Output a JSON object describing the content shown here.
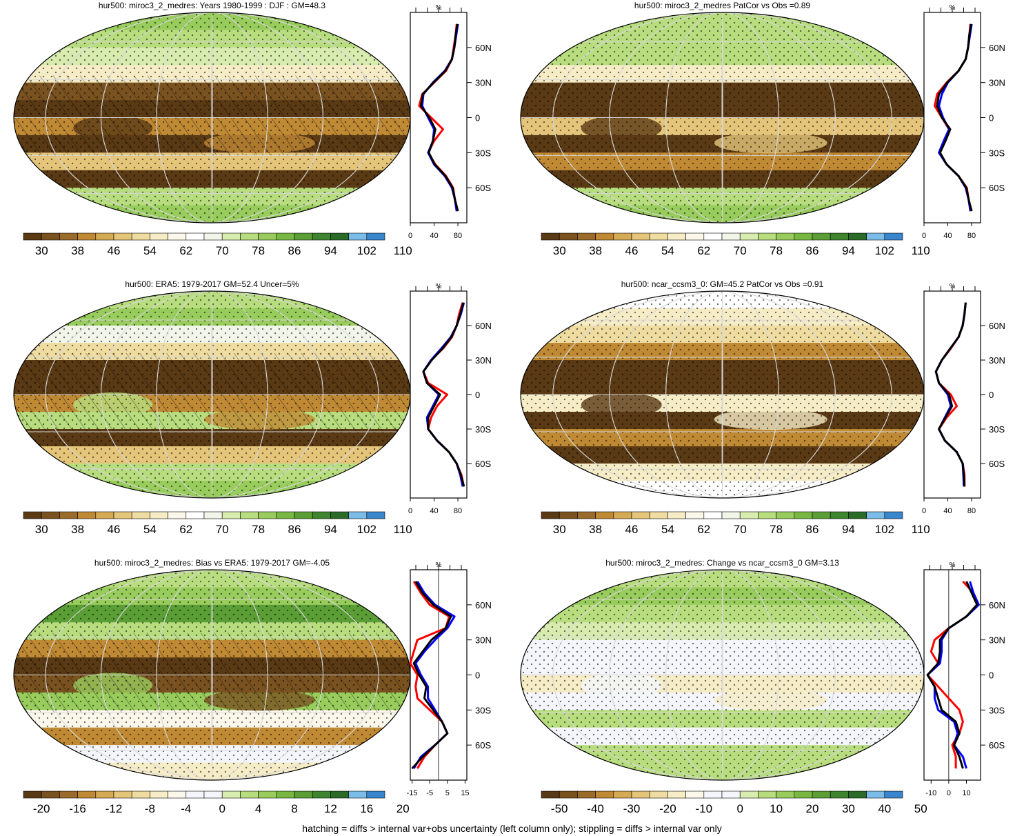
{
  "colors": {
    "abs_scale": [
      "#5a3a14",
      "#7a5220",
      "#9b6b2c",
      "#c08a34",
      "#d5aa55",
      "#e4c57a",
      "#efdca0",
      "#f6ecc6",
      "#fbf7ea",
      "#ffffff",
      "#f2f5e9",
      "#d8ecb0",
      "#b8dd7e",
      "#98cc5c",
      "#78b842",
      "#5a9e35",
      "#3f842e",
      "#2a6b28",
      "#7cbce8",
      "#3a86cc"
    ],
    "obs_line": "#ff0000",
    "ens_line": "#0000ff",
    "model_line": "#000000"
  },
  "footer_note": "hatching = diffs > internal var+obs uncertainty (left column only); stippling = diffs > internal var only",
  "chart_data": [
    {
      "type": "heatmap",
      "title": "hur500: miroc3_2_medres: Years 1980-1999 : DJF : GM=48.3",
      "colorbar": {
        "labels": [
          "30",
          "38",
          "46",
          "54",
          "62",
          "70",
          "78",
          "86",
          "94",
          "102",
          "110"
        ]
      },
      "zonal_profile": {
        "unit": "%",
        "ylabels": [
          "60N",
          "30N",
          "0",
          "30S",
          "60S"
        ],
        "xticks": [
          "0",
          "40",
          "80"
        ],
        "xlim": [
          0,
          95
        ],
        "lat": [
          80,
          70,
          60,
          50,
          40,
          30,
          20,
          10,
          0,
          -10,
          -20,
          -30,
          -40,
          -50,
          -60,
          -70,
          -80
        ],
        "series": [
          {
            "color": "#ff0000",
            "values": [
              78,
              76,
              73,
              70,
              60,
              40,
              20,
              15,
              35,
              55,
              40,
              30,
              42,
              60,
              72,
              75,
              78
            ]
          },
          {
            "color": "#0000ff",
            "values": [
              80,
              77,
              74,
              70,
              58,
              38,
              22,
              20,
              30,
              40,
              38,
              30,
              40,
              58,
              70,
              75,
              78
            ]
          },
          {
            "color": "#000000",
            "values": [
              79,
              76,
              74,
              70,
              59,
              39,
              21,
              18,
              32,
              42,
              38,
              31,
              41,
              59,
              71,
              75,
              80
            ]
          }
        ]
      }
    },
    {
      "type": "heatmap",
      "title": "hur500: miroc3_2_medres PatCor vs Obs =0.89",
      "colorbar": {
        "labels": [
          "30",
          "38",
          "46",
          "54",
          "62",
          "70",
          "78",
          "86",
          "94",
          "102",
          "110"
        ]
      },
      "zonal_profile": {
        "unit": "%",
        "ylabels": [
          "60N",
          "30N",
          "0",
          "30S",
          "60S"
        ],
        "xticks": [
          "0",
          "40",
          "80"
        ],
        "xlim": [
          0,
          95
        ],
        "lat": [
          80,
          70,
          60,
          50,
          40,
          30,
          20,
          10,
          0,
          -10,
          -20,
          -30,
          -40,
          -50,
          -60,
          -70,
          -80
        ],
        "series": [
          {
            "color": "#ff0000",
            "values": [
              78,
              76,
              74,
              70,
              58,
              38,
              22,
              18,
              30,
              42,
              35,
              26,
              38,
              58,
              72,
              75,
              78
            ]
          },
          {
            "color": "#0000ff",
            "values": [
              80,
              77,
              74,
              70,
              58,
              40,
              30,
              25,
              32,
              42,
              33,
              25,
              38,
              58,
              70,
              75,
              78
            ]
          },
          {
            "color": "#000000",
            "values": [
              79,
              76,
              74,
              70,
              58,
              39,
              25,
              22,
              30,
              44,
              36,
              27,
              38,
              58,
              71,
              75,
              80
            ]
          }
        ]
      }
    },
    {
      "type": "heatmap",
      "title": "hur500: ERA5: 1979-2017 GM=52.4 Uncer=5%",
      "colorbar": {
        "labels": [
          "30",
          "38",
          "46",
          "54",
          "62",
          "70",
          "78",
          "86",
          "94",
          "102",
          "110"
        ]
      },
      "zonal_profile": {
        "unit": "%",
        "ylabels": [
          "60N",
          "30N",
          "0",
          "30S",
          "60S"
        ],
        "xticks": [
          "0",
          "40",
          "80"
        ],
        "xlim": [
          0,
          95
        ],
        "lat": [
          80,
          70,
          60,
          50,
          40,
          30,
          20,
          10,
          0,
          -10,
          -20,
          -30,
          -40,
          -50,
          -60,
          -70,
          -80
        ],
        "series": [
          {
            "color": "#ff0000",
            "values": [
              88,
              82,
              78,
              70,
              55,
              35,
              22,
              30,
              62,
              45,
              35,
              30,
              45,
              65,
              78,
              86,
              90
            ]
          },
          {
            "color": "#0000ff",
            "values": [
              90,
              85,
              78,
              68,
              52,
              35,
              22,
              28,
              48,
              38,
              28,
              30,
              45,
              65,
              78,
              84,
              88
            ]
          },
          {
            "color": "#000000",
            "values": [
              89,
              84,
              78,
              69,
              54,
              36,
              22,
              28,
              50,
              40,
              30,
              30,
              45,
              65,
              78,
              85,
              90
            ]
          }
        ]
      }
    },
    {
      "type": "heatmap",
      "title": "hur500: ncar_ccsm3_0: GM=45.2 PatCor vs Obs =0.91",
      "colorbar": {
        "labels": [
          "30",
          "38",
          "46",
          "54",
          "62",
          "70",
          "78",
          "86",
          "94",
          "102",
          "110"
        ]
      },
      "zonal_profile": {
        "unit": "%",
        "ylabels": [
          "60N",
          "30N",
          "0",
          "30S",
          "60S"
        ],
        "xticks": [
          "0",
          "40",
          "80"
        ],
        "xlim": [
          0,
          95
        ],
        "lat": [
          80,
          70,
          60,
          50,
          40,
          30,
          20,
          10,
          0,
          -10,
          -20,
          -30,
          -40,
          -50,
          -60,
          -70,
          -80
        ],
        "series": [
          {
            "color": "#ff0000",
            "values": [
              70,
              68,
              65,
              58,
              45,
              30,
              20,
              25,
              45,
              55,
              38,
              25,
              35,
              55,
              65,
              68,
              68
            ]
          },
          {
            "color": "#0000ff",
            "values": [
              70,
              68,
              65,
              58,
              44,
              30,
              20,
              25,
              40,
              45,
              35,
              25,
              35,
              55,
              65,
              66,
              67
            ]
          },
          {
            "color": "#000000",
            "values": [
              70,
              68,
              65,
              58,
              44,
              30,
              20,
              25,
              42,
              47,
              36,
              25,
              35,
              55,
              65,
              67,
              68
            ]
          }
        ]
      }
    },
    {
      "type": "heatmap",
      "title": "hur500: miroc3_2_medres: Bias vs ERA5: 1979-2017 GM=-4.05",
      "colorbar": {
        "labels": [
          "-20",
          "-16",
          "-12",
          "-8",
          "-4",
          "0",
          "4",
          "8",
          "12",
          "16",
          "20"
        ]
      },
      "zonal_profile": {
        "unit": "%",
        "ylabels": [
          "60N",
          "30N",
          "0",
          "30S",
          "60S"
        ],
        "xticks": [
          "-15",
          "-5",
          "5",
          "15"
        ],
        "xlim": [
          -16,
          16
        ],
        "lat": [
          80,
          70,
          60,
          50,
          40,
          30,
          20,
          10,
          0,
          -10,
          -20,
          -30,
          -40,
          -50,
          -60,
          -70,
          -80
        ],
        "series": [
          {
            "color": "#ff0000",
            "values": [
              -14,
              -10,
              -5,
              6,
              4,
              -12,
              -14,
              -16,
              -12,
              -13,
              -12,
              -5,
              2,
              5,
              -2,
              -8,
              -12
            ]
          },
          {
            "color": "#0000ff",
            "values": [
              -12,
              -8,
              -2,
              9,
              5,
              -2,
              -8,
              -13,
              -10,
              -6,
              -6,
              -2,
              2,
              5,
              -2,
              -10,
              -14
            ]
          },
          {
            "color": "#000000",
            "values": [
              -13,
              -9,
              -3,
              7,
              4,
              -4,
              -9,
              -14,
              -11,
              -7,
              -8,
              -3,
              2,
              5,
              -2,
              -9,
              -15
            ]
          }
        ]
      }
    },
    {
      "type": "heatmap",
      "title": "hur500: miroc3_2_medres: Change vs ncar_ccsm3_0 GM=3.13",
      "colorbar": {
        "labels": [
          "-50",
          "-40",
          "-30",
          "-20",
          "-10",
          "0",
          "10",
          "20",
          "30",
          "40",
          "50"
        ]
      },
      "zonal_profile": {
        "unit": "%",
        "ylabels": [
          "60N",
          "30N",
          "0",
          "30S",
          "60S"
        ],
        "xticks": [
          "-10",
          "0",
          "10"
        ],
        "xlim": [
          -14,
          18
        ],
        "lat": [
          80,
          70,
          60,
          50,
          40,
          30,
          20,
          10,
          0,
          -10,
          -20,
          -30,
          -40,
          -50,
          -60,
          -70,
          -80
        ],
        "series": [
          {
            "color": "#ff0000",
            "values": [
              8,
              14,
              16,
              10,
              0,
              -8,
              -10,
              -6,
              -12,
              -6,
              0,
              6,
              8,
              6,
              2,
              4,
              4
            ]
          },
          {
            "color": "#0000ff",
            "values": [
              12,
              14,
              17,
              10,
              0,
              -4,
              -4,
              -5,
              -12,
              -8,
              -8,
              -6,
              3,
              5,
              3,
              8,
              10
            ]
          },
          {
            "color": "#000000",
            "values": [
              10,
              13,
              16,
              10,
              0,
              -5,
              -5,
              -6,
              -12,
              -8,
              -6,
              -4,
              4,
              6,
              3,
              6,
              8
            ]
          }
        ]
      }
    }
  ]
}
